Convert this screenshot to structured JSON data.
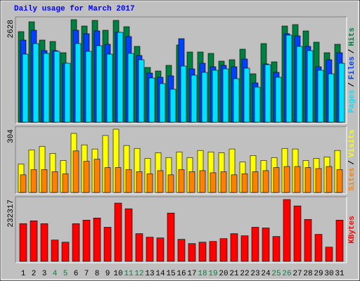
{
  "chart_data": [
    {
      "type": "bar",
      "title": "Daily usage for March 2017",
      "ylim": [
        0,
        2628
      ],
      "yticks": [
        2628
      ],
      "legend_separator": "/",
      "series": [
        {
          "name": "Hits",
          "color": "#008040",
          "values": [
            2322,
            2574,
            2106,
            2070,
            1782,
            2628,
            2466,
            2610,
            2358,
            2610,
            2448,
            1944,
            1404,
            1314,
            1458,
            1980,
            1800,
            1800,
            1764,
            1566,
            1602,
            1872,
            1242,
            2016,
            1548,
            2466,
            2502,
            2340,
            2052,
            1782,
            1998
          ]
        },
        {
          "name": "Files",
          "color": "#0040FF",
          "values": [
            2106,
            2358,
            1836,
            1836,
            1512,
            2358,
            2268,
            2340,
            1998,
            2304,
            2196,
            1710,
            1260,
            1152,
            1188,
            2142,
            1368,
            1512,
            1422,
            1458,
            1422,
            1620,
            1008,
            1494,
            1278,
            2268,
            2214,
            1944,
            1422,
            1602,
            1782
          ]
        },
        {
          "name": "Pages",
          "color": "#00E0FF",
          "values": [
            1746,
            2016,
            1764,
            1818,
            1512,
            2016,
            1818,
            1962,
            1746,
            2304,
            1764,
            1602,
            1134,
            990,
            846,
            1440,
            1206,
            1278,
            1332,
            1368,
            1116,
            1386,
            900,
            1476,
            1152,
            2232,
            1944,
            1836,
            1332,
            1242,
            1512
          ]
        }
      ]
    },
    {
      "type": "bar",
      "ylim": [
        0,
        304
      ],
      "yticks": [
        304
      ],
      "legend_separator": "/",
      "series": [
        {
          "name": "Visits",
          "color": "#FFFF00",
          "values": [
            137,
            205,
            222,
            188,
            154,
            284,
            229,
            209,
            274,
            304,
            226,
            212,
            164,
            191,
            168,
            195,
            168,
            202,
            195,
            191,
            209,
            147,
            178,
            154,
            168,
            212,
            209,
            154,
            164,
            171,
            202
          ]
        },
        {
          "name": "Sites",
          "color": "#FF8000",
          "values": [
            85,
            110,
            110,
            100,
            90,
            200,
            150,
            160,
            120,
            120,
            110,
            100,
            90,
            105,
            85,
            110,
            100,
            105,
            95,
            100,
            85,
            90,
            100,
            105,
            120,
            125,
            125,
            120,
            115,
            125,
            110
          ]
        }
      ]
    },
    {
      "type": "bar",
      "ylim": [
        0,
        232317
      ],
      "yticks": [
        232317
      ],
      "categories": [
        "1",
        "2",
        "3",
        "4",
        "5",
        "6",
        "7",
        "8",
        "9",
        "10",
        "11",
        "12",
        "13",
        "14",
        "15",
        "16",
        "17",
        "18",
        "19",
        "20",
        "21",
        "22",
        "23",
        "24",
        "25",
        "26",
        "27",
        "28",
        "29",
        "30",
        "31"
      ],
      "category_colors": [
        "#000000",
        "#000000",
        "#000000",
        "#008040",
        "#008040",
        "#000000",
        "#000000",
        "#000000",
        "#000000",
        "#000000",
        "#008040",
        "#008040",
        "#000000",
        "#000000",
        "#000000",
        "#000000",
        "#000000",
        "#008040",
        "#008040",
        "#000000",
        "#000000",
        "#000000",
        "#000000",
        "#000000",
        "#008040",
        "#008040",
        "#000000",
        "#000000",
        "#000000",
        "#000000",
        "#000000"
      ],
      "series": [
        {
          "name": "KBytes",
          "color": "#FF0000",
          "values": [
            141510,
            152190,
            141510,
            80100,
            72090,
            141510,
            154860,
            162870,
            128160,
            218940,
            197580,
            104130,
            90780,
            88110,
            181560,
            82770,
            66750,
            72090,
            74760,
            85440,
            104130,
            96120,
            128160,
            125490,
            93450,
            232317,
            208260,
            157530,
            101460,
            53400,
            154860
          ]
        }
      ]
    }
  ]
}
